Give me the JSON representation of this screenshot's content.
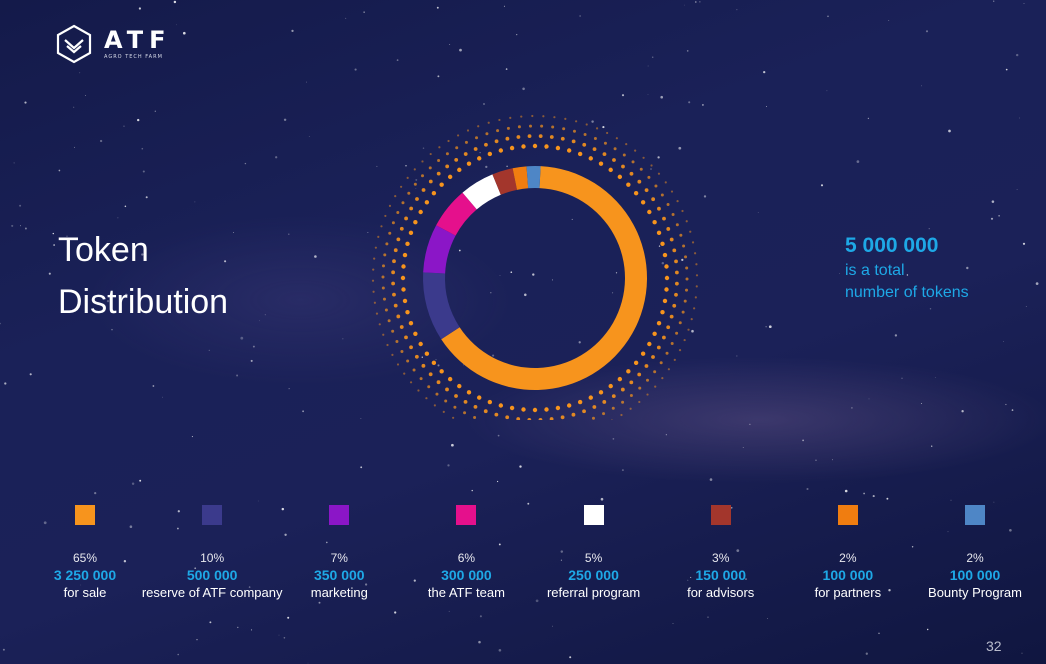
{
  "logo": {
    "name": "ATF",
    "subtitle": "AGRO TECH FARM"
  },
  "title": {
    "line1": "Token",
    "line2": "Distribution"
  },
  "total": {
    "value": "5 000 000",
    "line1": "is a total",
    "line2": "number of tokens"
  },
  "page_number": "32",
  "colors": {
    "accent": "#1ea8e6",
    "dots": "#f7941d",
    "background": "#1a2158"
  },
  "chart_data": {
    "type": "pie",
    "total": 5000000,
    "categories": [
      "for sale",
      "reserve of ATF company",
      "marketing",
      "the ATF team",
      "referral program",
      "for advisors",
      "for partners",
      "Bounty Program"
    ],
    "values": [
      3250000,
      500000,
      350000,
      300000,
      250000,
      150000,
      100000,
      100000
    ],
    "percent_labels": [
      "65%",
      "10%",
      "7%",
      "6%",
      "5%",
      "3%",
      "2%",
      "2%"
    ],
    "amount_labels": [
      "3 250 000",
      "500 000",
      "350 000",
      "300 000",
      "250 000",
      "150 000",
      "100 000",
      "100 000"
    ],
    "colors": [
      "#f7941d",
      "#3b3a8c",
      "#8b16c7",
      "#e5108c",
      "#ffffff",
      "#a3362c",
      "#f07d10",
      "#4e86c6"
    ],
    "legend_placement": "bottom"
  }
}
